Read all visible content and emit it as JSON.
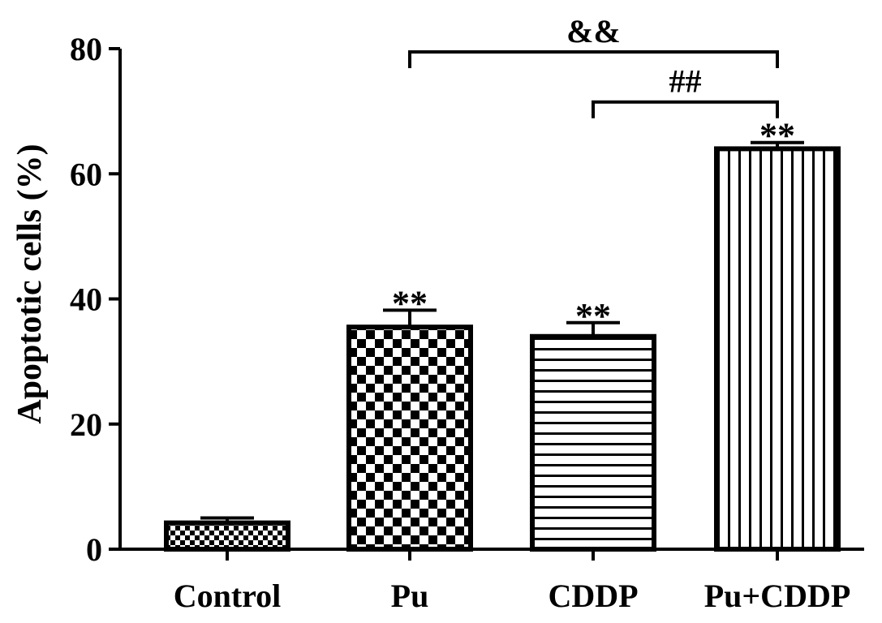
{
  "chart_data": {
    "type": "bar",
    "title": "",
    "xlabel": "",
    "ylabel": "Apoptotic cells (%)",
    "ylim": [
      0,
      80
    ],
    "yticks": [
      0,
      20,
      40,
      60,
      80
    ],
    "categories": [
      "Control",
      "Pu",
      "CDDP",
      "Pu+CDDP"
    ],
    "values": [
      4.2,
      35.5,
      34,
      64
    ],
    "errors": [
      0.8,
      2.7,
      2.2,
      1
    ],
    "patterns": [
      "fine-checker",
      "checker",
      "horizontal-lines",
      "vertical-lines"
    ],
    "annotations": [
      "",
      "**",
      "**",
      "**"
    ],
    "comparisons": [
      {
        "from": 1,
        "to": 3,
        "label": "&&",
        "y": 80
      },
      {
        "from": 2,
        "to": 3,
        "label": "##",
        "y": 72
      }
    ],
    "grid": false,
    "legend": "none"
  }
}
